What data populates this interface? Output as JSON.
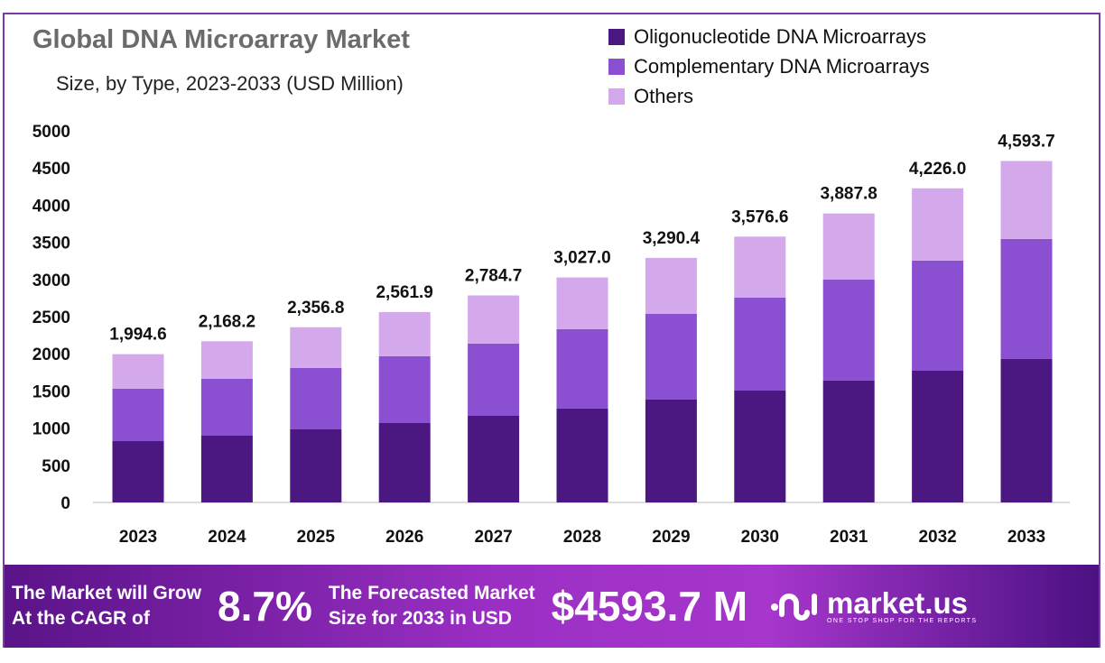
{
  "header": {
    "title": "Global DNA Microarray Market",
    "subtitle": "Size, by Type, 2023-2033 (USD Million)"
  },
  "colors": {
    "oligo": "#4b1780",
    "cdna": "#8b50d1",
    "others": "#d3a9ec",
    "accent": "#7a3aa8"
  },
  "chart_data": {
    "type": "bar",
    "stacked": true,
    "title": "Global DNA Microarray Market",
    "subtitle": "Size, by Type, 2023-2033 (USD Million)",
    "categories": [
      "2023",
      "2024",
      "2025",
      "2026",
      "2027",
      "2028",
      "2029",
      "2030",
      "2031",
      "2032",
      "2033"
    ],
    "series": [
      {
        "name": "Oligonucleotide DNA Microarrays",
        "values": [
          825,
          898,
          983,
          1068,
          1165,
          1263,
          1384,
          1505,
          1639,
          1772,
          1930
        ]
      },
      {
        "name": "Complementary DNA Microarrays",
        "values": [
          705,
          765,
          826,
          899,
          972,
          1068,
          1153,
          1251,
          1360,
          1482,
          1615
        ]
      },
      {
        "name": "Others",
        "values": [
          464.6,
          505.2,
          547.8,
          594.9,
          647.7,
          696.0,
          753.4,
          820.6,
          888.8,
          972.0,
          1048.7
        ]
      }
    ],
    "totals": [
      "1,994.6",
      "2,168.2",
      "2,356.8",
      "2,561.9",
      "2,784.7",
      "3,027.0",
      "3,290.4",
      "3,576.6",
      "3,887.8",
      "4,226.0",
      "4,593.7"
    ],
    "yticks": [
      "0",
      "500",
      "1000",
      "1500",
      "2000",
      "2500",
      "3000",
      "3500",
      "4000",
      "4500",
      "5000"
    ],
    "ylim": [
      0,
      5000
    ],
    "grid": false,
    "legend": "top-right"
  },
  "banner": {
    "cagr_text_1": "The Market will Grow",
    "cagr_text_2": "At the CAGR of",
    "cagr": "8.7%",
    "forecast_text_1": "The Forecasted Market",
    "forecast_text_2": "Size for 2033 in USD",
    "forecast": "$4593.7 M",
    "brand": "market.us",
    "tagline": "ONE STOP SHOP FOR THE REPORTS"
  }
}
